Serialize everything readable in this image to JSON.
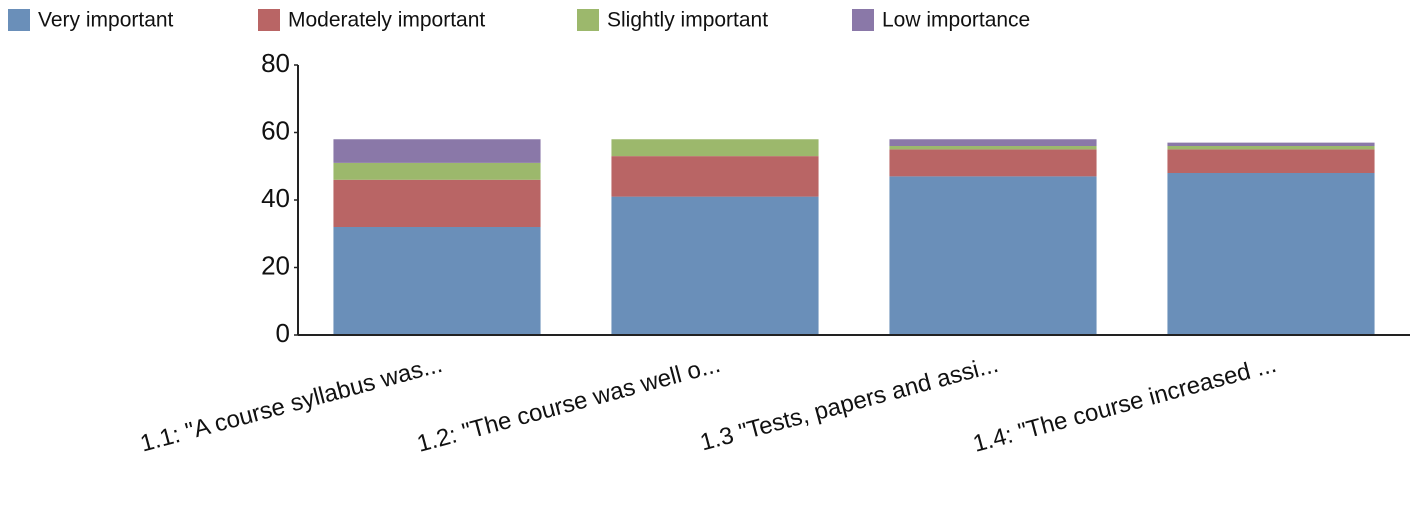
{
  "chart_data": {
    "type": "stacked_bar",
    "categories": [
      "1.1: \"A course syllabus was...",
      "1.2: \"The course was well o...",
      "1.3 \"Tests, papers and assi...",
      "1.4: \"The course increased ..."
    ],
    "series": [
      {
        "name": "Very important",
        "color": "#6a8fb9",
        "values": [
          32,
          41,
          47,
          48
        ]
      },
      {
        "name": "Moderately important",
        "color": "#b96565",
        "values": [
          14,
          12,
          8,
          7
        ]
      },
      {
        "name": "Slightly important",
        "color": "#9cb86c",
        "values": [
          5,
          5,
          1,
          1
        ]
      },
      {
        "name": "Low importance",
        "color": "#8a78a8",
        "values": [
          7,
          0,
          2,
          1
        ]
      }
    ],
    "ylim": [
      0,
      80
    ],
    "yticks": [
      0,
      20,
      40,
      60,
      80
    ],
    "grid": false,
    "legend": "top"
  }
}
